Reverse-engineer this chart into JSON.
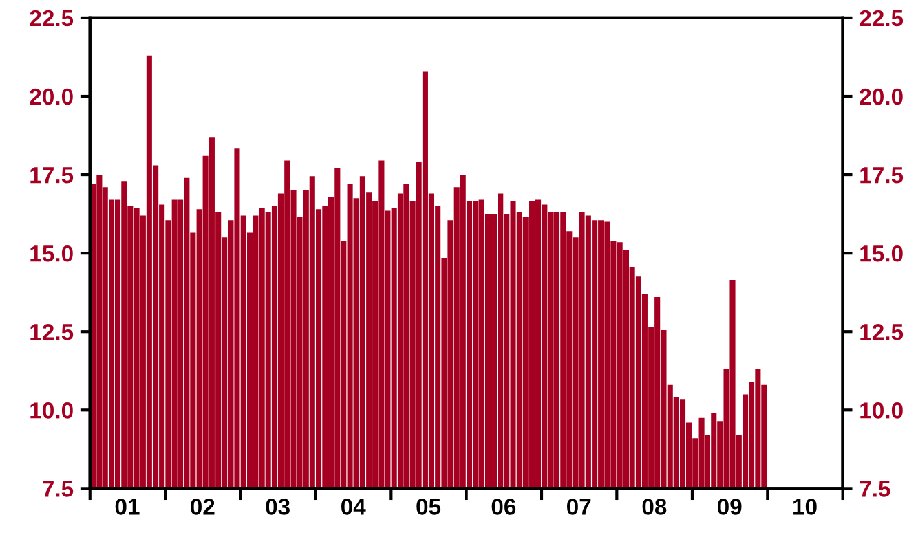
{
  "chart_data": {
    "type": "bar",
    "color": "#a50021",
    "x": [
      "2001-01",
      "2001-02",
      "2001-03",
      "2001-04",
      "2001-05",
      "2001-06",
      "2001-07",
      "2001-08",
      "2001-09",
      "2001-10",
      "2001-11",
      "2001-12",
      "2002-01",
      "2002-02",
      "2002-03",
      "2002-04",
      "2002-05",
      "2002-06",
      "2002-07",
      "2002-08",
      "2002-09",
      "2002-10",
      "2002-11",
      "2002-12",
      "2003-01",
      "2003-02",
      "2003-03",
      "2003-04",
      "2003-05",
      "2003-06",
      "2003-07",
      "2003-08",
      "2003-09",
      "2003-10",
      "2003-11",
      "2003-12",
      "2004-01",
      "2004-02",
      "2004-03",
      "2004-04",
      "2004-05",
      "2004-06",
      "2004-07",
      "2004-08",
      "2004-09",
      "2004-10",
      "2004-11",
      "2004-12",
      "2005-01",
      "2005-02",
      "2005-03",
      "2005-04",
      "2005-05",
      "2005-06",
      "2005-07",
      "2005-08",
      "2005-09",
      "2005-10",
      "2005-11",
      "2005-12",
      "2006-01",
      "2006-02",
      "2006-03",
      "2006-04",
      "2006-05",
      "2006-06",
      "2006-07",
      "2006-08",
      "2006-09",
      "2006-10",
      "2006-11",
      "2006-12",
      "2007-01",
      "2007-02",
      "2007-03",
      "2007-04",
      "2007-05",
      "2007-06",
      "2007-07",
      "2007-08",
      "2007-09",
      "2007-10",
      "2007-11",
      "2007-12",
      "2008-01",
      "2008-02",
      "2008-03",
      "2008-04",
      "2008-05",
      "2008-06",
      "2008-07",
      "2008-08",
      "2008-09",
      "2008-10",
      "2008-11",
      "2008-12",
      "2009-01",
      "2009-02",
      "2009-03",
      "2009-04",
      "2009-05",
      "2009-06",
      "2009-07",
      "2009-08",
      "2009-09",
      "2009-10",
      "2009-11",
      "2009-12"
    ],
    "values": [
      17.2,
      17.5,
      17.1,
      16.7,
      16.7,
      17.3,
      16.5,
      16.45,
      16.2,
      21.3,
      17.8,
      16.55,
      16.05,
      16.7,
      16.7,
      17.4,
      15.65,
      16.4,
      18.1,
      18.7,
      16.3,
      15.5,
      16.05,
      18.35,
      16.2,
      15.65,
      16.2,
      16.45,
      16.3,
      16.5,
      16.9,
      17.95,
      17.0,
      16.15,
      17.0,
      17.45,
      16.4,
      16.5,
      16.8,
      17.7,
      15.4,
      17.2,
      16.75,
      17.45,
      16.95,
      16.65,
      17.95,
      16.35,
      16.45,
      16.9,
      17.2,
      16.65,
      17.9,
      20.8,
      16.9,
      16.5,
      14.85,
      16.05,
      17.1,
      17.5,
      16.65,
      16.65,
      16.7,
      16.25,
      16.25,
      16.9,
      16.25,
      16.65,
      16.3,
      16.15,
      16.65,
      16.7,
      16.55,
      16.3,
      16.3,
      16.3,
      15.7,
      15.5,
      16.3,
      16.2,
      16.05,
      16.05,
      16.0,
      15.4,
      15.35,
      15.1,
      14.55,
      14.25,
      13.7,
      12.65,
      13.6,
      12.55,
      10.8,
      10.4,
      10.35,
      9.6,
      9.1,
      9.75,
      9.2,
      9.9,
      9.65,
      11.3,
      14.15,
      9.2,
      10.5,
      10.9,
      11.3,
      10.8
    ],
    "xlim": [
      "2001-01-01",
      "2011-01-01"
    ],
    "xticks": [
      {
        "value": "2001-01-01",
        "label": null
      },
      {
        "value": "2001-07-01",
        "label": "01"
      },
      {
        "value": "2002-01-01",
        "label": null
      },
      {
        "value": "2002-07-01",
        "label": "02"
      },
      {
        "value": "2003-01-01",
        "label": null
      },
      {
        "value": "2003-07-01",
        "label": "03"
      },
      {
        "value": "2004-01-01",
        "label": null
      },
      {
        "value": "2004-07-01",
        "label": "04"
      },
      {
        "value": "2005-01-01",
        "label": null
      },
      {
        "value": "2005-07-01",
        "label": "05"
      },
      {
        "value": "2006-01-01",
        "label": null
      },
      {
        "value": "2006-07-01",
        "label": "06"
      },
      {
        "value": "2007-01-01",
        "label": null
      },
      {
        "value": "2007-07-01",
        "label": "07"
      },
      {
        "value": "2008-01-01",
        "label": null
      },
      {
        "value": "2008-07-01",
        "label": "08"
      },
      {
        "value": "2009-01-01",
        "label": null
      },
      {
        "value": "2009-07-01",
        "label": "09"
      },
      {
        "value": "2010-01-01",
        "label": null
      },
      {
        "value": "2010-07-01",
        "label": "10"
      },
      {
        "value": "2011-01-01",
        "label": null
      }
    ],
    "ylim": [
      7.5,
      22.5
    ],
    "yticks": [
      {
        "value": 7.5,
        "label": "7.5"
      },
      {
        "value": 10,
        "label": "10.0"
      },
      {
        "value": 12.5,
        "label": "12.5"
      },
      {
        "value": 15,
        "label": "15.0"
      },
      {
        "value": 17.5,
        "label": "17.5"
      },
      {
        "value": 20,
        "label": "20.0"
      },
      {
        "value": 22.5,
        "label": "22.5"
      }
    ],
    "y2lim": [
      7.5,
      22.5
    ],
    "y2ticks": [
      {
        "value": 7.5,
        "label": "7.5"
      },
      {
        "value": 10,
        "label": "10.0"
      },
      {
        "value": 12.5,
        "label": "12.5"
      },
      {
        "value": 15,
        "label": "15.0"
      },
      {
        "value": 17.5,
        "label": "17.5"
      },
      {
        "value": 20,
        "label": "20.0"
      },
      {
        "value": 22.5,
        "label": "22.5"
      }
    ],
    "grid": false
  }
}
